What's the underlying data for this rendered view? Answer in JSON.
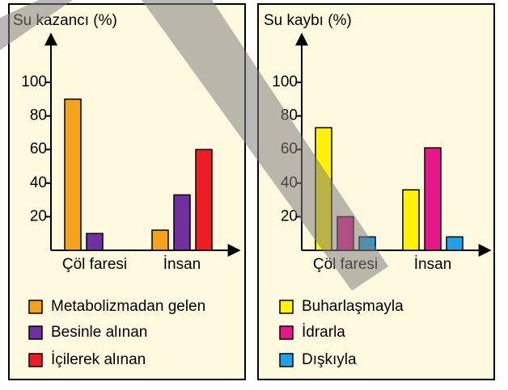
{
  "chart_data": [
    {
      "type": "bar",
      "y_label": "Su kazancı (%)",
      "categories": [
        "Çöl faresi",
        "İnsan"
      ],
      "series": [
        {
          "name": "Metabolizmadan gelen",
          "color": "#f7a21b",
          "values": [
            90,
            12
          ]
        },
        {
          "name": "Besinle alınan",
          "color": "#7030a0",
          "values": [
            10,
            33
          ]
        },
        {
          "name": "İçilerek alınan",
          "color": "#ee1c25",
          "values": [
            0,
            60
          ]
        }
      ],
      "ylim": [
        0,
        125
      ],
      "yticks": [
        20,
        40,
        60,
        80,
        100
      ]
    },
    {
      "type": "bar",
      "y_label": "Su kaybı (%)",
      "categories": [
        "Çöl faresi",
        "İnsan"
      ],
      "series": [
        {
          "name": "Buharlaşmayla",
          "color": "#fff200",
          "values": [
            73,
            36
          ]
        },
        {
          "name": "İdrarla",
          "color": "#e6178b",
          "values": [
            20,
            61
          ]
        },
        {
          "name": "Dışkıyla",
          "color": "#1ca3e6",
          "values": [
            8,
            8
          ]
        }
      ],
      "ylim": [
        0,
        125
      ],
      "yticks": [
        20,
        40,
        60,
        80,
        100
      ]
    }
  ]
}
